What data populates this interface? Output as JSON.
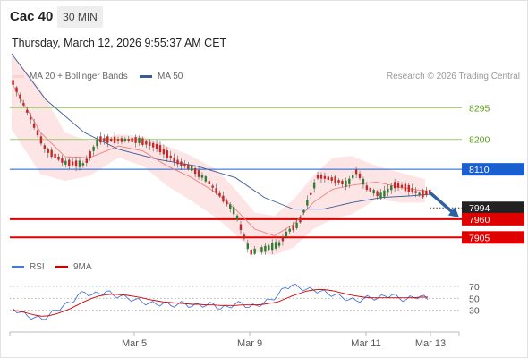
{
  "header": {
    "title": "Cac 40",
    "timeframe": "30 MIN",
    "datetime": "Thursday, March 12, 2026 9:55:37 AM CET"
  },
  "legend": {
    "ma20": "MA 20 + Bollinger Bands",
    "ma50": "MA 50",
    "credit": "Research © 2026 Trading Central",
    "rsi": "RSI",
    "rsi_ma": "9MA"
  },
  "colors": {
    "ma20": "#f08080",
    "band_fill": "#fde0e0",
    "ma50": "#3a5a99",
    "candle_up": "#2e7d32",
    "candle_down": "#c62828",
    "resistance": "#9ccc65",
    "resistance_text": "#5a9e1a",
    "pivot": "#1a5fd0",
    "support": "#e00000",
    "rsi": "#4a78d8",
    "rsi_ma": "#d00000",
    "arrow": "#2e5fa0",
    "current_tag": "#222222"
  },
  "chart_data": {
    "type": "candlestick",
    "x_axis": {
      "labels": [
        "Mar 5",
        "Mar 9",
        "Mar 11",
        "Mar 13"
      ]
    },
    "y_range": [
      7852,
      8350
    ],
    "levels": [
      {
        "kind": "resistance",
        "value": 8295,
        "label": "8295"
      },
      {
        "kind": "resistance",
        "value": 8200,
        "label": "8200"
      },
      {
        "kind": "pivot",
        "value": 8110,
        "label": "8110"
      },
      {
        "kind": "current",
        "value": 7994,
        "label": "7994"
      },
      {
        "kind": "support",
        "value": 7960,
        "label": "7960"
      },
      {
        "kind": "support",
        "value": 7905,
        "label": "7905"
      }
    ],
    "price_path": [
      [
        0,
        8380
      ],
      [
        3,
        8290
      ],
      [
        7,
        8170
      ],
      [
        11,
        8130
      ],
      [
        15,
        8125
      ],
      [
        18,
        8200
      ],
      [
        22,
        8198
      ],
      [
        26,
        8198
      ],
      [
        30,
        8178
      ],
      [
        34,
        8133
      ],
      [
        37,
        8113
      ],
      [
        40,
        8080
      ],
      [
        43,
        8030
      ],
      [
        46,
        7980
      ],
      [
        49,
        7860
      ],
      [
        52,
        7870
      ],
      [
        55,
        7885
      ],
      [
        57,
        7925
      ],
      [
        59,
        7945
      ],
      [
        63,
        8090
      ],
      [
        66,
        8080
      ],
      [
        69,
        8065
      ],
      [
        71,
        8105
      ],
      [
        73,
        8055
      ],
      [
        76,
        8030
      ],
      [
        79,
        8065
      ],
      [
        82,
        8050
      ],
      [
        84,
        8035
      ],
      [
        86,
        8042
      ]
    ],
    "ma20_path": [
      [
        0,
        8370
      ],
      [
        6,
        8220
      ],
      [
        11,
        8148
      ],
      [
        16,
        8145
      ],
      [
        22,
        8180
      ],
      [
        27,
        8165
      ],
      [
        32,
        8120
      ],
      [
        37,
        8085
      ],
      [
        42,
        8040
      ],
      [
        46,
        7990
      ],
      [
        50,
        7930
      ],
      [
        54,
        7910
      ],
      [
        58,
        7945
      ],
      [
        62,
        8010
      ],
      [
        66,
        8050
      ],
      [
        70,
        8062
      ],
      [
        75,
        8072
      ],
      [
        80,
        8055
      ],
      [
        85,
        8045
      ]
    ],
    "band_upper": [
      [
        0,
        8510
      ],
      [
        6,
        8350
      ],
      [
        11,
        8220
      ],
      [
        16,
        8195
      ],
      [
        22,
        8215
      ],
      [
        27,
        8210
      ],
      [
        32,
        8180
      ],
      [
        37,
        8150
      ],
      [
        42,
        8110
      ],
      [
        46,
        8050
      ],
      [
        50,
        7980
      ],
      [
        54,
        7970
      ],
      [
        58,
        8020
      ],
      [
        62,
        8090
      ],
      [
        66,
        8145
      ],
      [
        70,
        8150
      ],
      [
        75,
        8120
      ],
      [
        80,
        8100
      ],
      [
        85,
        8080
      ]
    ],
    "band_lower": [
      [
        0,
        8230
      ],
      [
        6,
        8095
      ],
      [
        11,
        8075
      ],
      [
        16,
        8090
      ],
      [
        22,
        8145
      ],
      [
        27,
        8120
      ],
      [
        32,
        8060
      ],
      [
        37,
        8015
      ],
      [
        42,
        7965
      ],
      [
        46,
        7915
      ],
      [
        50,
        7860
      ],
      [
        54,
        7850
      ],
      [
        58,
        7875
      ],
      [
        62,
        7930
      ],
      [
        66,
        7960
      ],
      [
        70,
        7975
      ],
      [
        75,
        8020
      ],
      [
        80,
        8010
      ],
      [
        85,
        8010
      ]
    ],
    "ma50_path": [
      [
        0,
        8470
      ],
      [
        7,
        8320
      ],
      [
        15,
        8220
      ],
      [
        22,
        8170
      ],
      [
        30,
        8140
      ],
      [
        38,
        8120
      ],
      [
        46,
        8085
      ],
      [
        52,
        8025
      ],
      [
        58,
        7990
      ],
      [
        64,
        7990
      ],
      [
        70,
        8010
      ],
      [
        76,
        8025
      ],
      [
        82,
        8030
      ],
      [
        86,
        8035
      ]
    ],
    "forecast_arrow": {
      "from": [
        86,
        8040
      ],
      "to": [
        92,
        7965
      ]
    },
    "rsi": {
      "levels": [
        70,
        50,
        30
      ],
      "range": [
        10,
        82
      ],
      "rsi_values": [
        32,
        27,
        20,
        18,
        15,
        22,
        30,
        38,
        42,
        55,
        60,
        56,
        58,
        62,
        55,
        54,
        50,
        48,
        44,
        42,
        40,
        42,
        38,
        40,
        42,
        36,
        40,
        38,
        41,
        32,
        36,
        40,
        42,
        35,
        38,
        42,
        48,
        55,
        68,
        72,
        68,
        65,
        64,
        62,
        58,
        56,
        52,
        48,
        46,
        49,
        52,
        50,
        54,
        56,
        50,
        48,
        52,
        54,
        48
      ],
      "ma9_values": [
        30,
        28,
        25,
        22,
        20,
        21,
        24,
        28,
        33,
        39,
        45,
        50,
        54,
        56,
        57,
        56,
        55,
        53,
        51,
        48,
        46,
        44,
        43,
        42,
        41,
        40,
        40,
        39,
        39,
        38,
        38,
        38,
        39,
        39,
        39,
        40,
        42,
        44,
        49,
        54,
        58,
        62,
        64,
        65,
        64,
        62,
        59,
        56,
        54,
        52,
        51,
        51,
        51,
        51,
        51,
        51,
        51,
        52,
        52
      ]
    }
  }
}
